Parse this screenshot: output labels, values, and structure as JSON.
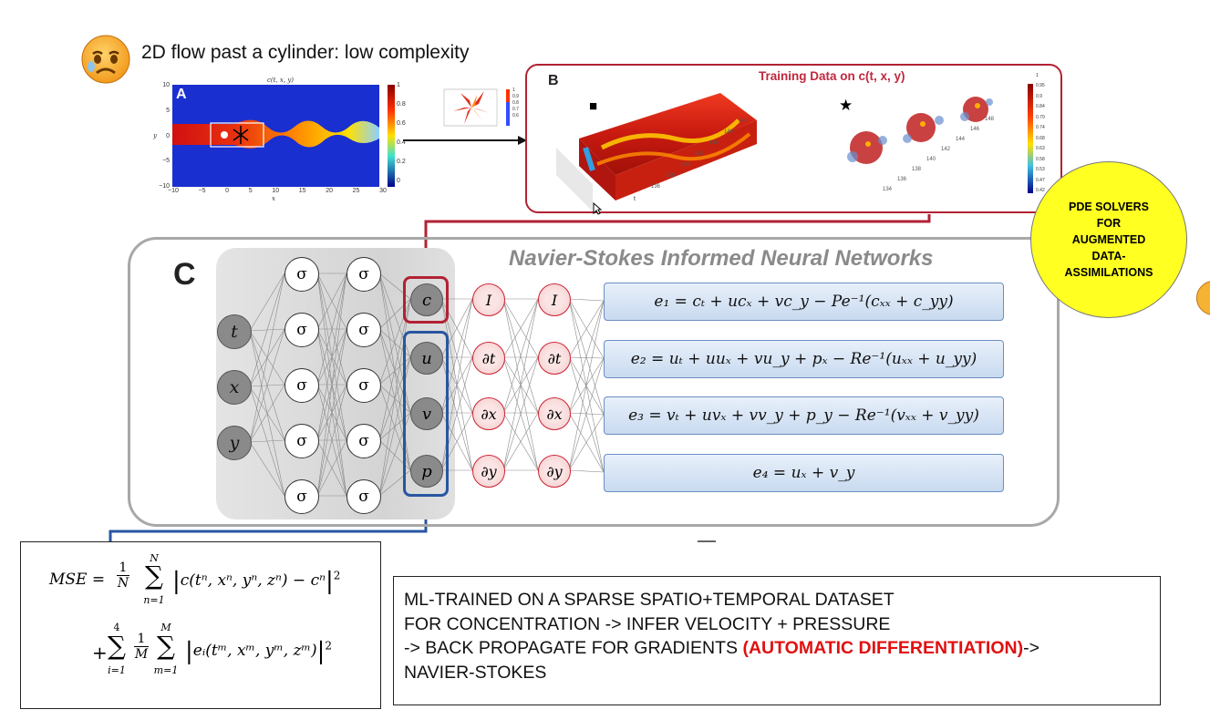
{
  "slide_title": "2D flow past a cylinder: low complexity",
  "panel_a": {
    "label": "A",
    "plot_title": "c(t, x, y)",
    "ylabel": "y",
    "xlabel": "x",
    "x_ticks": [
      "−10",
      "−5",
      "0",
      "5",
      "10",
      "15",
      "20",
      "25",
      "30"
    ],
    "y_ticks": [
      "10",
      "5",
      "0",
      "−5",
      "−10"
    ],
    "colorbar_ticks": [
      "1",
      "0.8",
      "0.6",
      "0.4",
      "0.2",
      "0"
    ]
  },
  "inset_colorbar_ticks": [
    "1",
    "0.9",
    "0.8",
    "0.7",
    "0.6"
  ],
  "panel_b": {
    "label": "B",
    "title": "Training Data on c(t, x, y)",
    "markers": [
      "■",
      "★"
    ],
    "t_ticks_left": [
      "148",
      "146",
      "144",
      "142",
      "140",
      "138",
      "136"
    ],
    "t_ticks_right": [
      "148",
      "146",
      "144",
      "142",
      "140",
      "138",
      "136",
      "134"
    ],
    "axis_t": "t",
    "colorbar_ticks": [
      "1",
      "0.95",
      "0.9",
      "0.84",
      "0.79",
      "0.74",
      "0.68",
      "0.63",
      "0.58",
      "0.53",
      "0.47",
      "0.42"
    ]
  },
  "panel_c": {
    "label": "C",
    "title": "Navier-Stokes Informed Neural Networks",
    "inputs": [
      "t",
      "x",
      "y"
    ],
    "hidden_symbol": "σ",
    "outputs": [
      "c",
      "u",
      "v",
      "p"
    ],
    "operator_layer_1": [
      "I",
      "∂t",
      "∂x",
      "∂y"
    ],
    "operator_layer_2": [
      "I",
      "∂t",
      "∂x",
      "∂y"
    ],
    "equations": [
      "e₁ = cₜ + ucₓ + vc_y − Pe⁻¹(cₓₓ + c_yy)",
      "e₂ = uₜ + uuₓ + vu_y + pₓ − Re⁻¹(uₓₓ + u_yy)",
      "e₃ = vₜ + uvₓ + vv_y + p_y − Re⁻¹(vₓₓ + v_yy)",
      "e₄ = uₓ + v_y"
    ]
  },
  "callout": {
    "lines": [
      "PDE SOLVERS",
      "FOR",
      "AUGMENTED",
      "DATA-",
      "ASSIMILATIONS"
    ]
  },
  "mse": {
    "lhs": "MSE",
    "term1_body": "c(tⁿ, xⁿ, yⁿ, zⁿ) − cⁿ",
    "term2_body": "eᵢ(tᵐ, xᵐ, yᵐ, zᵐ)",
    "sum1_upper": "N",
    "sum1_lower": "n=1",
    "sum2_upper": "4",
    "sum2_lower": "i=1",
    "sum3_upper": "M",
    "sum3_lower": "m=1",
    "frac1": [
      "1",
      "N"
    ],
    "frac2": [
      "1",
      "M"
    ],
    "exponent": "2"
  },
  "description": {
    "line1": "ML-TRAINED ON A SPARSE SPATIO+TEMPORAL DATASET",
    "line2": "FOR CONCENTRATION -> INFER VELOCITY + PRESSURE",
    "line3_prefix": "-> BACK PROPAGATE FOR GRADIENTS ",
    "line3_highlight": "(AUTOMATIC DIFFERENTIATION)",
    "line3_suffix": "->",
    "line4": "NAVIER-STOKES"
  },
  "colors": {
    "frame_red": "#b22234",
    "frame_blue": "#2856a0",
    "highlight_red": "#e01010",
    "callout_yellow": "#ffff22"
  }
}
